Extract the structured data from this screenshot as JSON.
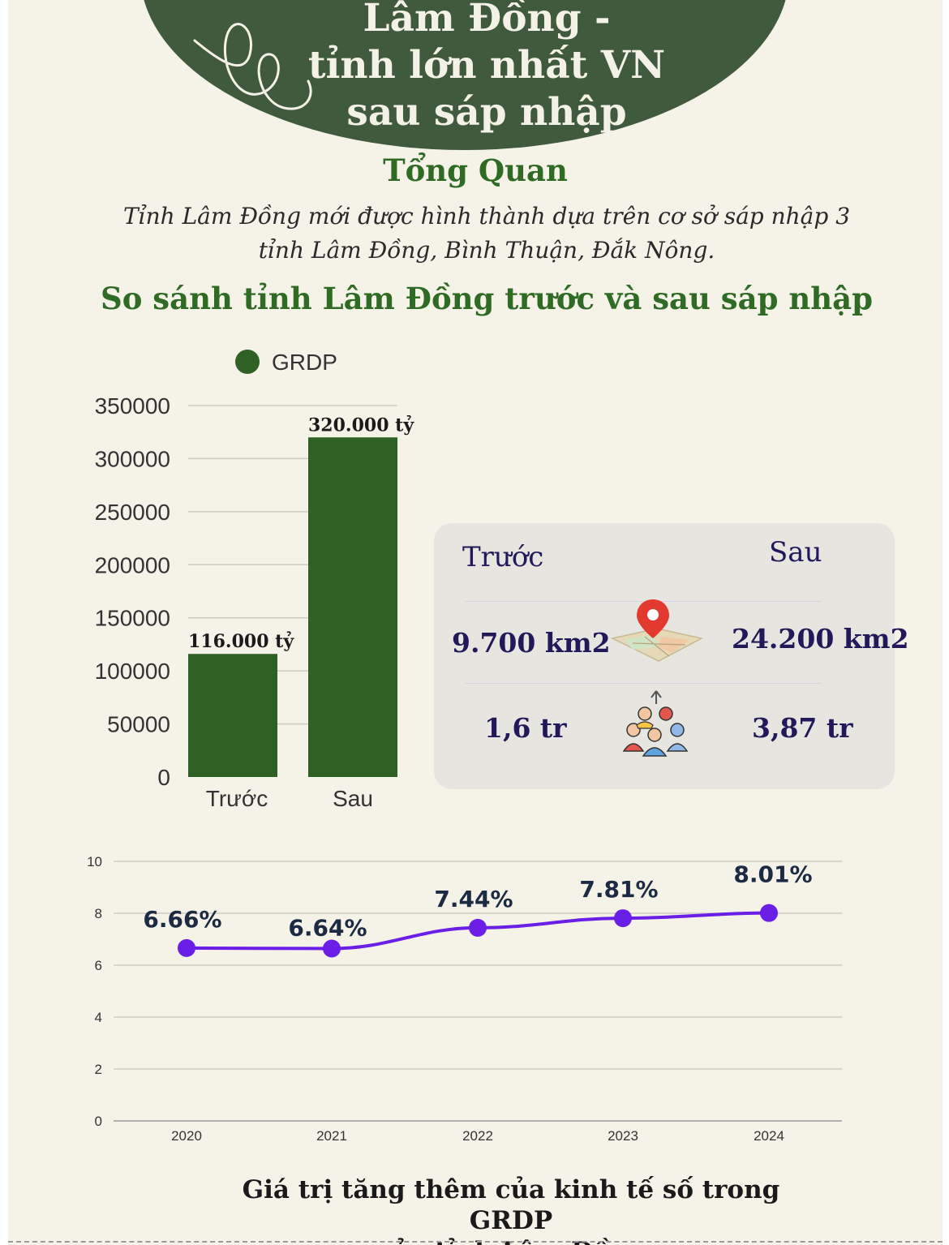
{
  "header": {
    "title_lines": [
      "Lâm Đồng -",
      "tỉnh lớn nhất VN",
      "sau sáp nhập"
    ]
  },
  "overview": {
    "heading": "Tổng Quan",
    "text": "Tỉnh Lâm Đồng mới được hình thành dựa trên cơ sở sáp nhập 3 tỉnh Lâm Đồng, Bình Thuận, Đắk Nông."
  },
  "comparison": {
    "title": "So sánh tỉnh Lâm Đồng trước và sau sáp nhập"
  },
  "stat_card": {
    "before_label": "Trước",
    "after_label": "Sau",
    "rows": [
      {
        "icon": "map-pin-icon",
        "before": "9.700 km2",
        "after": "24.200  km2"
      },
      {
        "icon": "population-icon",
        "before": "1,6 tr",
        "after": "3,87 tr"
      }
    ]
  },
  "chart_data": [
    {
      "type": "bar",
      "legend": [
        "GRDP"
      ],
      "categories": [
        "Trước",
        "Sau"
      ],
      "values": [
        116000,
        320000
      ],
      "data_labels": [
        "116.000 tỷ",
        "320.000 tỷ"
      ],
      "yticks": [
        "0",
        "50000",
        "100000",
        "150000",
        "200000",
        "250000",
        "300000",
        "350000"
      ],
      "ylim": [
        0,
        350000
      ],
      "color": "#2e6123",
      "grid": true,
      "legend_position": "top"
    },
    {
      "type": "line",
      "x": [
        "2020",
        "2021",
        "2022",
        "2023",
        "2024"
      ],
      "values": [
        6.66,
        6.64,
        7.44,
        7.81,
        8.01
      ],
      "data_labels": [
        "6.66%",
        "6.64%",
        "7.44%",
        "7.81%",
        "8.01%"
      ],
      "yticks": [
        "0",
        "2",
        "4",
        "6",
        "8",
        "10"
      ],
      "ylim": [
        0,
        10
      ],
      "color": "#6a1ee6",
      "grid": true,
      "title_lines": [
        "Giá trị tăng thêm  của kinh tế số trong GRDP",
        "của tỉnh Lâm Đồng"
      ]
    }
  ]
}
